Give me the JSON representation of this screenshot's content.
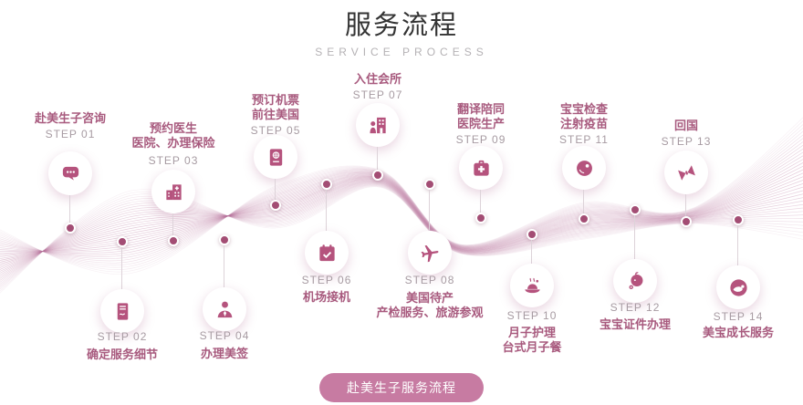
{
  "header": {
    "title": "服务流程",
    "subtitle": "SERVICE PROCESS"
  },
  "steps": [
    {
      "label": "STEP 01",
      "name": "赴美生子咨询",
      "icon": "chat-icon",
      "row": "top"
    },
    {
      "label": "STEP 02",
      "name": "确定服务细节",
      "icon": "contract-icon",
      "row": "bottom"
    },
    {
      "label": "STEP 03",
      "name": "预约医生\n医院、办理保险",
      "icon": "hospital-icon",
      "row": "top"
    },
    {
      "label": "STEP 04",
      "name": "办理美签",
      "icon": "person-icon",
      "row": "bottom"
    },
    {
      "label": "STEP 05",
      "name": "预订机票\n前往美国",
      "icon": "passport-icon",
      "row": "top"
    },
    {
      "label": "STEP 06",
      "name": "机场接机",
      "icon": "calendar-check-icon",
      "row": "bottom"
    },
    {
      "label": "STEP 07",
      "name": "入住会所",
      "icon": "check-in-icon",
      "row": "top"
    },
    {
      "label": "STEP 08",
      "name": "美国待产\n产检服务、旅游参观",
      "icon": "airplane-icon",
      "row": "bottom"
    },
    {
      "label": "STEP 09",
      "name": "翻译陪同\n医院生产",
      "icon": "medical-bag-icon",
      "row": "top"
    },
    {
      "label": "STEP 10",
      "name": "月子护理\n台式月子餐",
      "icon": "meal-icon",
      "row": "bottom"
    },
    {
      "label": "STEP 11",
      "name": "宝宝检查\n注射疫苗",
      "icon": "vaccine-icon",
      "row": "top"
    },
    {
      "label": "STEP 12",
      "name": "宝宝证件办理",
      "icon": "baby-icon",
      "row": "bottom"
    },
    {
      "label": "STEP 13",
      "name": "回国",
      "icon": "butterfly-icon",
      "row": "top"
    },
    {
      "label": "STEP 14",
      "name": "美宝成长服务",
      "icon": "baby-sleep-icon",
      "row": "bottom"
    }
  ],
  "cta": {
    "label": "赴美生子服务流程"
  },
  "colors": {
    "accent": "#b5537d",
    "step_name": "#a85a7e",
    "step_label": "#a79ba2",
    "dot": "#a34d74",
    "wave": "#b8749c",
    "button_bg": "#c77ba2",
    "title": "#333333",
    "subtitle": "#b5b2b5"
  }
}
